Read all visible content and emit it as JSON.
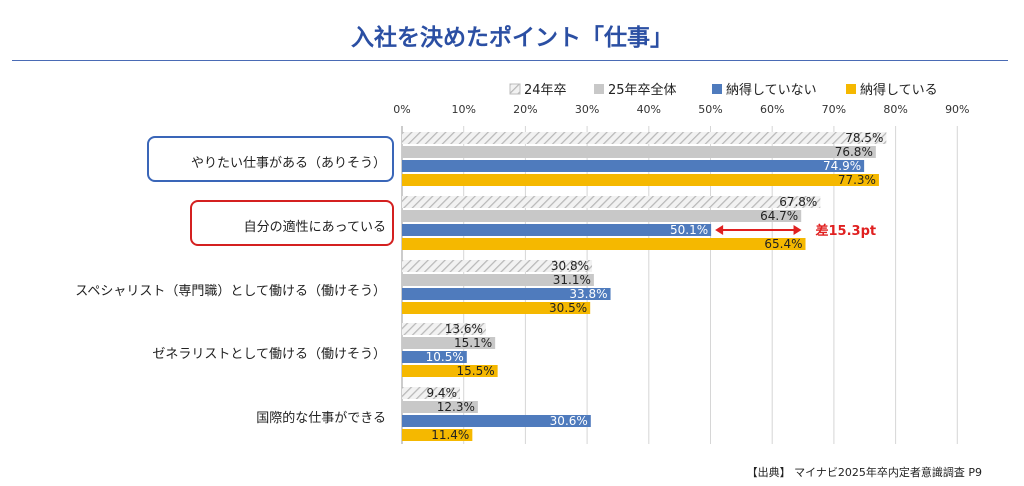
{
  "title": "入社を決めたポイント「仕事」",
  "source": "【出典】 マイナビ2025年卒内定者意識調査 P9",
  "colors": {
    "title": "#2b4fa3",
    "rule": "#4a6bb5",
    "s24": "#d9d9d9",
    "s25": "#c8c8c8",
    "notConvinced": "#4f7bbd",
    "convinced": "#f5b800",
    "gap": "#e02020",
    "boxBlue": "#3a66b8",
    "boxRed": "#d42020"
  },
  "chart_data": {
    "type": "bar",
    "orientation": "horizontal",
    "xlim": [
      0,
      90
    ],
    "ticks": [
      "0%",
      "10%",
      "20%",
      "30%",
      "40%",
      "50%",
      "60%",
      "70%",
      "80%",
      "90%"
    ],
    "grid": true,
    "legend_position": "top-right",
    "categories": [
      "やりたい仕事がある（ありそう）",
      "自分の適性にあっている",
      "スペシャリスト（専門職）として働ける（働けそう）",
      "ゼネラリストとして働ける（働けそう）",
      "国際的な仕事ができる"
    ],
    "highlighted_categories": [
      0,
      1
    ],
    "series": [
      {
        "name": "24年卒",
        "pattern": "hatched",
        "values": [
          78.5,
          67.8,
          30.8,
          13.6,
          9.4
        ],
        "labels": [
          "78.5%",
          "67.8%",
          "30.8%",
          "13.6%",
          "9.4%"
        ]
      },
      {
        "name": "25年卒全体",
        "pattern": "solid",
        "values": [
          76.8,
          64.7,
          31.1,
          15.1,
          12.3
        ],
        "labels": [
          "76.8%",
          "64.7%",
          "31.1%",
          "15.1%",
          "12.3%"
        ]
      },
      {
        "name": "納得していない",
        "pattern": "solid",
        "values": [
          74.9,
          50.1,
          33.8,
          10.5,
          30.6
        ],
        "labels": [
          "74.9%",
          "50.1%",
          "33.8%",
          "10.5%",
          "30.6%"
        ]
      },
      {
        "name": "納得している",
        "pattern": "solid",
        "values": [
          77.3,
          65.4,
          30.5,
          15.5,
          11.4
        ],
        "labels": [
          "77.3%",
          "65.4%",
          "30.5%",
          "15.5%",
          "11.4%"
        ]
      }
    ],
    "annotation": {
      "category": 1,
      "from_series": 2,
      "to_series": 3,
      "text": "差15.3pt"
    }
  }
}
